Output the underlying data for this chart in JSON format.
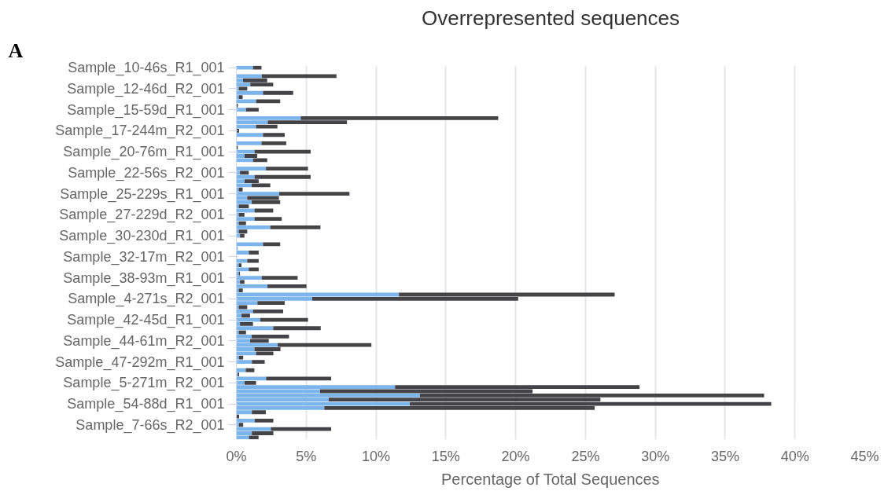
{
  "chart_data": {
    "type": "bar",
    "orientation": "horizontal",
    "stacked": true,
    "title": "Overrepresented sequences",
    "xlabel": "Percentage of Total Sequences",
    "annotations": [
      "A"
    ],
    "categories": [
      "Sample_10-46s_R1_001",
      null,
      null,
      null,
      null,
      "Sample_12-46d_R2_001",
      null,
      null,
      null,
      null,
      "Sample_15-59d_R1_001",
      null,
      null,
      null,
      null,
      "Sample_17-244m_R2_001",
      null,
      null,
      null,
      null,
      "Sample_20-76m_R1_001",
      null,
      null,
      null,
      null,
      "Sample_22-56s_R2_001",
      null,
      null,
      null,
      null,
      "Sample_25-229s_R1_001",
      null,
      null,
      null,
      null,
      "Sample_27-229d_R2_001",
      null,
      null,
      null,
      null,
      "Sample_30-230d_R1_001",
      null,
      null,
      null,
      null,
      "Sample_32-17m_R2_001",
      null,
      null,
      null,
      null,
      "Sample_38-93m_R1_001",
      null,
      null,
      null,
      null,
      "Sample_4-271s_R2_001",
      null,
      null,
      null,
      null,
      "Sample_42-45d_R1_001",
      null,
      null,
      null,
      null,
      "Sample_44-61m_R2_001",
      null,
      null,
      null,
      null,
      "Sample_47-292m_R1_001",
      null,
      null,
      null,
      null,
      "Sample_5-271m_R2_001",
      null,
      null,
      null,
      null,
      "Sample_54-88d_R1_001",
      null,
      null,
      null,
      null,
      "Sample_7-66s_R2_001",
      null,
      null,
      null
    ],
    "series": [
      {
        "color": "#7cb5ec",
        "values": [
          1.19,
          0,
          1.82,
          0.48,
          1.0,
          0.17,
          1.91,
          0.17,
          1.41,
          0,
          0.69,
          0,
          4.61,
          2.25,
          1.41,
          0,
          1.91,
          0,
          1.8,
          0,
          1.3,
          0.59,
          1.19,
          0,
          2.12,
          0.26,
          1.3,
          0.59,
          1.1,
          0.17,
          3.07,
          0.78,
          1.1,
          0.17,
          1.3,
          0.17,
          1.3,
          0.17,
          2.43,
          0.17,
          0.26,
          0,
          1.91,
          0.1,
          0.89,
          0,
          0.78,
          0.17,
          0.89,
          0.17,
          1.82,
          0.26,
          2.23,
          0.17,
          11.64,
          5.43,
          1.51,
          0.17,
          1.19,
          0.37,
          1.71,
          0.26,
          2.64,
          0.17,
          1.1,
          0.99,
          2.96,
          1.3,
          1.41,
          0.18,
          1.11,
          0,
          0.67,
          0.1,
          2.13,
          0.59,
          11.36,
          5.99,
          13.14,
          6.61,
          12.42,
          6.3,
          1.11,
          0,
          1.31,
          0.18,
          2.47,
          1.11,
          0.9
        ]
      },
      {
        "color": "#434348",
        "values": [
          0.61,
          0,
          5.35,
          1.73,
          1.64,
          0.61,
          2.16,
          0.28,
          1.73,
          0.1,
          0.91,
          0,
          14.14,
          5.67,
          1.53,
          0.2,
          1.55,
          0,
          1.77,
          0.1,
          4.02,
          0.9,
          1.02,
          0,
          3.01,
          0.63,
          4.02,
          1.01,
          1.33,
          0.28,
          5.03,
          2.27,
          2.04,
          0.72,
          1.34,
          0.41,
          1.95,
          0.52,
          3.59,
          0.61,
          0.32,
          0,
          1.23,
          0,
          0.71,
          0,
          0.82,
          0.2,
          0.71,
          0.09,
          2.57,
          0.32,
          2.79,
          0.29,
          15.45,
          14.75,
          1.95,
          0.61,
          2.16,
          0.61,
          3.42,
          0.93,
          3.4,
          0.52,
          2.67,
          1.33,
          6.71,
          1.86,
          1.24,
          0.31,
          0.92,
          0,
          0.62,
          0.1,
          4.66,
          0.82,
          17.51,
          15.22,
          24.65,
          19.46,
          25.88,
          19.36,
          1.0,
          0.2,
          1.34,
          0.31,
          4.32,
          1.54,
          0.69
        ]
      }
    ],
    "xlim": [
      0,
      45
    ],
    "xticks": [
      {
        "value": 0,
        "label": "0%"
      },
      {
        "value": 5,
        "label": "5%"
      },
      {
        "value": 10,
        "label": "10%"
      },
      {
        "value": 15,
        "label": "15%"
      },
      {
        "value": 20,
        "label": "20%"
      },
      {
        "value": 25,
        "label": "25%"
      },
      {
        "value": 30,
        "label": "30%"
      },
      {
        "value": 35,
        "label": "35%"
      },
      {
        "value": 40,
        "label": "40%"
      },
      {
        "value": 45,
        "label": "45%"
      }
    ],
    "grid": "x"
  }
}
